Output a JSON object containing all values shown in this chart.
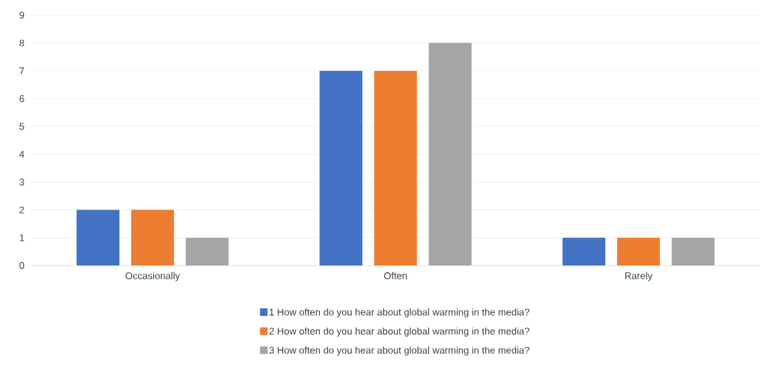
{
  "chart_data": {
    "type": "bar",
    "categories": [
      "Occasionally",
      "Often",
      "Rarely"
    ],
    "series": [
      {
        "name": "1 How often do you hear about global warming in the media?",
        "color": "#4472c4",
        "values": [
          2,
          7,
          1
        ]
      },
      {
        "name": "2 How often do you hear about global warming in the media?",
        "color": "#ed7d31",
        "values": [
          2,
          7,
          1
        ]
      },
      {
        "name": "3 How often do you hear about global warming in the media?",
        "color": "#a5a5a5",
        "values": [
          1,
          8,
          1
        ]
      }
    ],
    "ylim": [
      0,
      9
    ],
    "yticks": [
      0,
      1,
      2,
      3,
      4,
      5,
      6,
      7,
      8,
      9
    ],
    "grid": "y",
    "legend": "bottom"
  }
}
